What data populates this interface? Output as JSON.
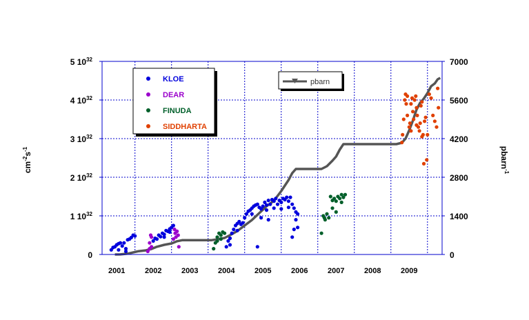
{
  "chart_data": {
    "type": "scatter",
    "title": "",
    "y_left": {
      "label": "cm-2s-1",
      "unit_parts": {
        "base": "cm",
        "exp1": "-2",
        "mid": "s",
        "exp2": "-1"
      },
      "range": [
        0,
        5e+32
      ],
      "ticks": [
        {
          "value": 0,
          "label": "0",
          "sup": ""
        },
        {
          "value": 1e+32,
          "label": "1 10",
          "sup": "32"
        },
        {
          "value": 2e+32,
          "label": "2 10",
          "sup": "32"
        },
        {
          "value": 3e+32,
          "label": "3 10",
          "sup": "32"
        },
        {
          "value": 4e+32,
          "label": "4 10",
          "sup": "32"
        },
        {
          "value": 5e+32,
          "label": "5 10",
          "sup": "32"
        }
      ]
    },
    "y_right": {
      "label": "pbarn-1",
      "unit_parts": {
        "base": "pbarn",
        "exp": "-1"
      },
      "range": [
        0,
        7000
      ],
      "ticks": [
        "0",
        "1400",
        "2800",
        "4200",
        "5600",
        "7000"
      ]
    },
    "x_axis": {
      "range": [
        2000.6,
        2009.9
      ],
      "ticks": [
        "2001",
        "2002",
        "2003",
        "2004",
        "2005",
        "2006",
        "2007",
        "2008",
        "2009"
      ]
    },
    "grid": true,
    "legend_position": "top-left",
    "scatter_series": [
      {
        "name": "KLOE",
        "color": "#0000dd",
        "points": [
          [
            2000.85,
            0.12
          ],
          [
            2000.9,
            0.18
          ],
          [
            2000.95,
            0.2
          ],
          [
            2001.0,
            0.25
          ],
          [
            2001.05,
            0.28
          ],
          [
            2001.1,
            0.3
          ],
          [
            2001.15,
            0.22
          ],
          [
            2001.2,
            0.3
          ],
          [
            2001.25,
            0.15
          ],
          [
            2001.3,
            0.38
          ],
          [
            2001.35,
            0.4
          ],
          [
            2001.4,
            0.44
          ],
          [
            2001.45,
            0.5
          ],
          [
            2001.5,
            0.48
          ],
          [
            2001.05,
            0.12
          ],
          [
            2001.25,
            0.08
          ],
          [
            2002.0,
            0.35
          ],
          [
            2002.05,
            0.42
          ],
          [
            2002.1,
            0.4
          ],
          [
            2002.15,
            0.5
          ],
          [
            2002.2,
            0.46
          ],
          [
            2002.25,
            0.55
          ],
          [
            2002.3,
            0.52
          ],
          [
            2002.35,
            0.62
          ],
          [
            2002.4,
            0.6
          ],
          [
            2002.45,
            0.66
          ],
          [
            2002.5,
            0.7
          ],
          [
            2002.55,
            0.75
          ],
          [
            2002.3,
            0.45
          ],
          [
            2002.45,
            0.58
          ],
          [
            2004.0,
            0.2
          ],
          [
            2004.05,
            0.35
          ],
          [
            2004.1,
            0.42
          ],
          [
            2004.15,
            0.55
          ],
          [
            2004.2,
            0.65
          ],
          [
            2004.25,
            0.75
          ],
          [
            2004.3,
            0.8
          ],
          [
            2004.35,
            0.85
          ],
          [
            2004.4,
            0.78
          ],
          [
            2004.45,
            0.82
          ],
          [
            2004.5,
            0.95
          ],
          [
            2004.55,
            1.05
          ],
          [
            2004.6,
            1.12
          ],
          [
            2004.65,
            1.15
          ],
          [
            2004.7,
            1.2
          ],
          [
            2004.75,
            1.25
          ],
          [
            2004.8,
            1.28
          ],
          [
            2004.85,
            1.3
          ],
          [
            2004.9,
            1.22
          ],
          [
            2004.95,
            1.18
          ],
          [
            2004.1,
            0.25
          ],
          [
            2004.3,
            0.62
          ],
          [
            2004.7,
            1.05
          ],
          [
            2005.0,
            1.25
          ],
          [
            2005.05,
            1.35
          ],
          [
            2005.1,
            1.28
          ],
          [
            2005.15,
            1.4
          ],
          [
            2005.2,
            1.3
          ],
          [
            2005.25,
            1.42
          ],
          [
            2005.3,
            1.38
          ],
          [
            2005.35,
            1.45
          ],
          [
            2005.4,
            1.3
          ],
          [
            2005.45,
            1.4
          ],
          [
            2005.5,
            1.35
          ],
          [
            2005.55,
            1.45
          ],
          [
            2005.6,
            1.42
          ],
          [
            2005.65,
            1.48
          ],
          [
            2005.7,
            1.38
          ],
          [
            2005.75,
            1.48
          ],
          [
            2005.8,
            1.3
          ],
          [
            2005.85,
            1.2
          ],
          [
            2005.9,
            1.1
          ],
          [
            2005.95,
            1.05
          ],
          [
            2005.1,
            1.15
          ],
          [
            2005.3,
            1.2
          ],
          [
            2005.5,
            1.18
          ],
          [
            2005.7,
            1.22
          ],
          [
            2005.9,
            0.9
          ],
          [
            2005.8,
            0.45
          ],
          [
            2005.85,
            0.65
          ],
          [
            2005.95,
            0.7
          ],
          [
            2004.85,
            0.2
          ],
          [
            2004.95,
            0.95
          ],
          [
            2005.15,
            0.9
          ]
        ]
      },
      {
        "name": "DEAR",
        "color": "#9b00cc",
        "points": [
          [
            2001.85,
            0.08
          ],
          [
            2001.9,
            0.15
          ],
          [
            2001.95,
            0.2
          ],
          [
            2001.9,
            0.3
          ],
          [
            2001.95,
            0.45
          ],
          [
            2001.93,
            0.5
          ],
          [
            2002.55,
            0.4
          ],
          [
            2002.6,
            0.55
          ],
          [
            2002.65,
            0.6
          ],
          [
            2002.68,
            0.5
          ],
          [
            2002.58,
            0.65
          ],
          [
            2002.7,
            0.2
          ],
          [
            2002.62,
            0.45
          ]
        ]
      },
      {
        "name": "FINUDA",
        "color": "#005f2a",
        "points": [
          [
            2003.65,
            0.15
          ],
          [
            2003.7,
            0.3
          ],
          [
            2003.75,
            0.45
          ],
          [
            2003.8,
            0.55
          ],
          [
            2003.85,
            0.5
          ],
          [
            2003.9,
            0.58
          ],
          [
            2003.95,
            0.55
          ],
          [
            2003.75,
            0.35
          ],
          [
            2003.85,
            0.4
          ],
          [
            2006.6,
            0.55
          ],
          [
            2006.65,
            1.0
          ],
          [
            2006.7,
            0.9
          ],
          [
            2006.75,
            1.05
          ],
          [
            2006.8,
            0.95
          ],
          [
            2006.68,
            0.95
          ],
          [
            2006.85,
            1.5
          ],
          [
            2006.9,
            1.4
          ],
          [
            2006.95,
            1.45
          ],
          [
            2007.0,
            1.38
          ],
          [
            2007.05,
            1.5
          ],
          [
            2007.1,
            1.45
          ],
          [
            2007.15,
            1.55
          ],
          [
            2007.2,
            1.48
          ],
          [
            2007.25,
            1.55
          ],
          [
            2007.0,
            1.1
          ],
          [
            2007.15,
            1.35
          ],
          [
            2006.9,
            1.2
          ]
        ]
      },
      {
        "name": "SIDDHARTA",
        "color": "#e04000",
        "points": [
          [
            2008.8,
            2.9
          ],
          [
            2008.82,
            3.1
          ],
          [
            2008.85,
            3.5
          ],
          [
            2008.88,
            4.0
          ],
          [
            2008.9,
            4.15
          ],
          [
            2008.92,
            3.9
          ],
          [
            2008.95,
            3.6
          ],
          [
            2009.0,
            3.3
          ],
          [
            2009.02,
            3.4
          ],
          [
            2009.05,
            3.9
          ],
          [
            2009.08,
            4.05
          ],
          [
            2009.1,
            3.7
          ],
          [
            2009.12,
            3.5
          ],
          [
            2009.15,
            4.0
          ],
          [
            2009.18,
            4.1
          ],
          [
            2009.2,
            3.8
          ],
          [
            2009.22,
            3.6
          ],
          [
            2009.25,
            3.3
          ],
          [
            2009.28,
            3.2
          ],
          [
            2009.3,
            3.4
          ],
          [
            2009.32,
            3.85
          ],
          [
            2009.35,
            3.95
          ],
          [
            2009.38,
            3.1
          ],
          [
            2009.4,
            2.35
          ],
          [
            2009.42,
            3.45
          ],
          [
            2009.45,
            3.55
          ],
          [
            2009.48,
            2.45
          ],
          [
            2009.5,
            3.1
          ],
          [
            2009.55,
            4.15
          ],
          [
            2009.6,
            4.05
          ],
          [
            2009.65,
            3.6
          ],
          [
            2009.7,
            3.45
          ],
          [
            2009.75,
            3.3
          ],
          [
            2009.78,
            4.3
          ],
          [
            2009.8,
            3.8
          ],
          [
            2008.95,
            4.1
          ],
          [
            2009.05,
            3.2
          ],
          [
            2009.2,
            3.35
          ],
          [
            2009.35,
            3.05
          ]
        ]
      }
    ],
    "line_series": {
      "name": "pbarn",
      "color": "#555555",
      "points": [
        [
          2000.95,
          0
        ],
        [
          2001.1,
          2
        ],
        [
          2001.3,
          30
        ],
        [
          2001.6,
          120
        ],
        [
          2001.8,
          150
        ],
        [
          2001.95,
          200
        ],
        [
          2002.1,
          280
        ],
        [
          2002.3,
          350
        ],
        [
          2002.5,
          400
        ],
        [
          2002.65,
          480
        ],
        [
          2002.8,
          520
        ],
        [
          2003.0,
          520
        ],
        [
          2003.6,
          520
        ],
        [
          2003.8,
          560
        ],
        [
          2003.95,
          600
        ],
        [
          2004.1,
          700
        ],
        [
          2004.3,
          850
        ],
        [
          2004.5,
          1050
        ],
        [
          2004.7,
          1250
        ],
        [
          2004.9,
          1500
        ],
        [
          2005.1,
          1750
        ],
        [
          2005.3,
          1950
        ],
        [
          2005.5,
          2300
        ],
        [
          2005.7,
          2700
        ],
        [
          2005.8,
          2950
        ],
        [
          2005.9,
          3100
        ],
        [
          2006.05,
          3100
        ],
        [
          2006.6,
          3100
        ],
        [
          2006.75,
          3200
        ],
        [
          2006.9,
          3400
        ],
        [
          2007.0,
          3550
        ],
        [
          2007.1,
          3800
        ],
        [
          2007.2,
          4000
        ],
        [
          2008.65,
          4000
        ],
        [
          2008.8,
          4050
        ],
        [
          2008.9,
          4200
        ],
        [
          2009.0,
          4500
        ],
        [
          2009.1,
          4850
        ],
        [
          2009.2,
          5250
        ],
        [
          2009.3,
          5500
        ],
        [
          2009.4,
          5650
        ],
        [
          2009.5,
          5850
        ],
        [
          2009.6,
          6100
        ],
        [
          2009.7,
          6200
        ],
        [
          2009.78,
          6350
        ],
        [
          2009.85,
          6400
        ]
      ]
    },
    "legend_items": [
      {
        "name": "KLOE",
        "color": "#0000dd"
      },
      {
        "name": "DEAR",
        "color": "#9b00cc"
      },
      {
        "name": "FINUDA",
        "color": "#005f2a"
      },
      {
        "name": "SIDDHARTA",
        "color": "#e04000"
      }
    ],
    "legend2_item": {
      "name": "pbarn",
      "color": "#555555"
    }
  }
}
